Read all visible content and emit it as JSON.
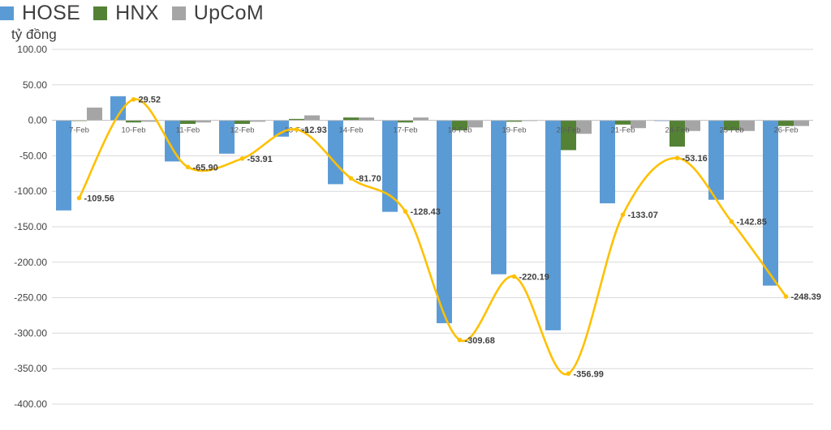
{
  "chart_data": {
    "type": "bar",
    "unit_label": "tỷ đồng",
    "categories": [
      "7-Feb",
      "10-Feb",
      "11-Feb",
      "12-Feb",
      "13-Feb",
      "14-Feb",
      "17-Feb",
      "18-Feb",
      "19-Feb",
      "20-Feb",
      "21-Feb",
      "24-Feb",
      "25-Feb",
      "26-Feb"
    ],
    "series": [
      {
        "name": "HOSE",
        "color": "#5b9bd5",
        "values": [
          -127,
          34,
          -58,
          -47,
          -23,
          -90,
          -129,
          -286,
          -217,
          -296,
          -117,
          -1,
          -112,
          -233
        ]
      },
      {
        "name": "HNX",
        "color": "#548235",
        "values": [
          -1,
          -3,
          -5,
          -5,
          2,
          4,
          -3,
          -14,
          -2,
          -42,
          -6,
          -37,
          -14,
          -8
        ]
      },
      {
        "name": "UpCoM",
        "color": "#a5a5a5",
        "values": [
          18,
          -2,
          -3,
          -2,
          7,
          4,
          4,
          -10,
          -1,
          -19,
          -11,
          -15,
          -15,
          -8
        ]
      }
    ],
    "line": {
      "color": "#ffc000",
      "values": [
        -109.56,
        29.52,
        -65.9,
        -53.91,
        -12.93,
        -81.7,
        -128.43,
        -309.68,
        -220.19,
        -356.99,
        -133.07,
        -53.16,
        -142.85,
        -248.39
      ],
      "labels": [
        "-109.56",
        "29.52",
        "-65.90",
        "-53.91",
        "-12.93",
        "-81.70",
        "-128.43",
        "-309.68",
        "-220.19",
        "-356.99",
        "-133.07",
        "-53.16",
        "-142.85",
        "-248.39"
      ]
    },
    "ylim": [
      -400,
      100
    ],
    "yticks": [
      "100.00",
      "50.00",
      "0.00",
      "-50.00",
      "-100.00",
      "-150.00",
      "-200.00",
      "-250.00",
      "-300.00",
      "-350.00",
      "-400.00"
    ],
    "ytick_values": [
      100,
      50,
      0,
      -50,
      -100,
      -150,
      -200,
      -250,
      -300,
      -350,
      -400
    ],
    "legend_position": "top-left",
    "grid": true
  }
}
